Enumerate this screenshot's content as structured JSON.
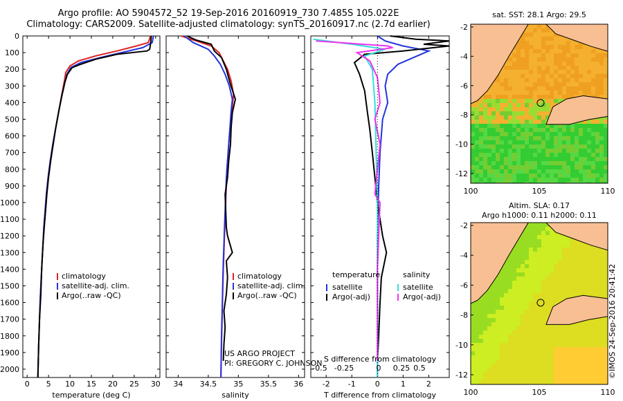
{
  "header": {
    "line1": "Argo profile: AO 5904572_52 19-Sep-2016 20160919_730 7.485S 105.022E",
    "line2": "Climatology: CARS2009. Satellite-adjusted climatology: synTS_20160917.nc (2.7d earlier)"
  },
  "colors": {
    "climatology": "#dd2222",
    "satellite": "#2233dd",
    "argo": "#000000",
    "sat_salinity": "#33dddd",
    "argo_adj_salinity": "#ee33ee",
    "land": "#f8bf93",
    "coast": "#000000"
  },
  "depth_axis": {
    "ticks": [
      0,
      100,
      200,
      300,
      400,
      500,
      600,
      700,
      800,
      900,
      1000,
      1100,
      1200,
      1300,
      1400,
      1500,
      1600,
      1700,
      1800,
      1900,
      2000
    ],
    "ylim": [
      0,
      2050
    ]
  },
  "chart_data": [
    {
      "type": "line",
      "name": "temperature-profile",
      "xlabel": "temperature (deg C)",
      "xlim": [
        -1,
        31
      ],
      "xticks": [
        0,
        5,
        10,
        15,
        20,
        25,
        30
      ],
      "legend": [
        "climatology",
        "satellite-adj. clim.",
        "Argo(..raw -QC)"
      ],
      "series": [
        {
          "name": "climatology",
          "color": "#dd2222",
          "points": [
            [
              28.8,
              0
            ],
            [
              28.3,
              40
            ],
            [
              25.5,
              60
            ],
            [
              21,
              90
            ],
            [
              16,
              120
            ],
            [
              12,
              150
            ],
            [
              10,
              180
            ],
            [
              9,
              220
            ],
            [
              8.7,
              270
            ],
            [
              8.1,
              350
            ],
            [
              7.4,
              450
            ],
            [
              6.7,
              550
            ],
            [
              6,
              650
            ],
            [
              5.4,
              750
            ],
            [
              4.9,
              850
            ],
            [
              4.5,
              950
            ],
            [
              4.2,
              1050
            ],
            [
              3.9,
              1150
            ],
            [
              3.7,
              1250
            ],
            [
              3.4,
              1400
            ],
            [
              3.1,
              1550
            ],
            [
              2.9,
              1700
            ],
            [
              2.7,
              1850
            ],
            [
              2.5,
              2050
            ]
          ]
        },
        {
          "name": "satellite-adj. clim.",
          "color": "#2233dd",
          "points": [
            [
              29.5,
              0
            ],
            [
              29.2,
              40
            ],
            [
              27,
              70
            ],
            [
              22,
              100
            ],
            [
              17,
              130
            ],
            [
              12.5,
              160
            ],
            [
              10.2,
              190
            ],
            [
              9.3,
              230
            ],
            [
              8.8,
              280
            ],
            [
              8.1,
              360
            ],
            [
              7.4,
              450
            ],
            [
              6.7,
              550
            ],
            [
              6,
              650
            ],
            [
              5.4,
              750
            ],
            [
              4.9,
              850
            ],
            [
              4.5,
              950
            ],
            [
              4.2,
              1050
            ],
            [
              3.9,
              1150
            ],
            [
              3.7,
              1250
            ],
            [
              3.4,
              1400
            ],
            [
              3.1,
              1550
            ],
            [
              2.9,
              1700
            ],
            [
              2.7,
              1850
            ],
            [
              2.5,
              2050
            ]
          ]
        },
        {
          "name": "Argo(..raw -QC)",
          "color": "#000000",
          "points": [
            [
              29,
              0
            ],
            [
              28.8,
              50
            ],
            [
              28.6,
              80
            ],
            [
              28,
              90
            ],
            [
              21,
              110
            ],
            [
              16,
              140
            ],
            [
              12.5,
              170
            ],
            [
              10.5,
              190
            ],
            [
              9.4,
              230
            ],
            [
              8.8,
              280
            ],
            [
              8.1,
              360
            ],
            [
              7.4,
              450
            ],
            [
              6.7,
              550
            ],
            [
              6.1,
              650
            ],
            [
              5.5,
              750
            ],
            [
              5,
              850
            ],
            [
              4.6,
              950
            ],
            [
              4.3,
              1050
            ],
            [
              4,
              1150
            ],
            [
              3.7,
              1250
            ],
            [
              3.4,
              1400
            ],
            [
              3.2,
              1550
            ],
            [
              2.9,
              1700
            ],
            [
              2.7,
              1850
            ],
            [
              2.5,
              2050
            ]
          ]
        }
      ]
    },
    {
      "type": "line",
      "name": "salinity-profile",
      "xlabel": "salinity",
      "xlim": [
        33.8,
        36.1
      ],
      "xticks": [
        34,
        34.5,
        35,
        35.5,
        36
      ],
      "legend": [
        "climatology",
        "satellite-adj. clim.",
        "Argo(..raw -QC)"
      ],
      "series": [
        {
          "name": "climatology",
          "color": "#dd2222",
          "points": [
            [
              34.05,
              0
            ],
            [
              34.3,
              30
            ],
            [
              34.55,
              60
            ],
            [
              34.68,
              100
            ],
            [
              34.75,
              150
            ],
            [
              34.82,
              200
            ],
            [
              34.88,
              270
            ],
            [
              34.92,
              350
            ],
            [
              34.9,
              420
            ],
            [
              34.88,
              500
            ],
            [
              34.85,
              600
            ],
            [
              34.83,
              700
            ],
            [
              34.81,
              800
            ],
            [
              34.8,
              900
            ],
            [
              34.79,
              1000
            ],
            [
              34.78,
              1100
            ],
            [
              34.77,
              1200
            ],
            [
              34.76,
              1300
            ],
            [
              34.75,
              1400
            ],
            [
              34.74,
              1550
            ],
            [
              34.73,
              1700
            ],
            [
              34.72,
              1850
            ],
            [
              34.71,
              2050
            ]
          ]
        },
        {
          "name": "satellite-adj. clim.",
          "color": "#2233dd",
          "points": [
            [
              34.1,
              0
            ],
            [
              34.25,
              40
            ],
            [
              34.5,
              80
            ],
            [
              34.6,
              120
            ],
            [
              34.7,
              170
            ],
            [
              34.78,
              230
            ],
            [
              34.85,
              300
            ],
            [
              34.9,
              380
            ],
            [
              34.88,
              450
            ],
            [
              34.86,
              550
            ],
            [
              34.84,
              650
            ],
            [
              34.82,
              750
            ],
            [
              34.8,
              850
            ],
            [
              34.79,
              950
            ],
            [
              34.78,
              1050
            ],
            [
              34.77,
              1150
            ],
            [
              34.76,
              1250
            ],
            [
              34.75,
              1350
            ],
            [
              34.74,
              1500
            ],
            [
              34.73,
              1650
            ],
            [
              34.72,
              1800
            ],
            [
              34.71,
              2050
            ]
          ]
        },
        {
          "name": "Argo(..raw -QC)",
          "color": "#000000",
          "points": [
            [
              34.15,
              0
            ],
            [
              34.3,
              25
            ],
            [
              34.55,
              50
            ],
            [
              34.6,
              90
            ],
            [
              34.72,
              130
            ],
            [
              34.8,
              200
            ],
            [
              34.86,
              280
            ],
            [
              34.95,
              380
            ],
            [
              34.9,
              460
            ],
            [
              34.88,
              550
            ],
            [
              34.87,
              650
            ],
            [
              34.84,
              750
            ],
            [
              34.82,
              850
            ],
            [
              34.78,
              950
            ],
            [
              34.79,
              1050
            ],
            [
              34.8,
              1150
            ],
            [
              34.82,
              1200
            ],
            [
              34.9,
              1300
            ],
            [
              34.8,
              1350
            ],
            [
              34.82,
              1450
            ],
            [
              34.8,
              1550
            ],
            [
              34.76,
              1650
            ],
            [
              34.78,
              1750
            ],
            [
              34.76,
              1850
            ],
            [
              34.75,
              1950
            ]
          ]
        }
      ]
    },
    {
      "type": "line",
      "name": "difference-profile",
      "xlabel": "T difference from climatology",
      "top_label": "S difference from climatology",
      "xlim": [
        -2.6,
        2.8
      ],
      "xticks": [
        -2,
        -1,
        0,
        1,
        2
      ],
      "top_ticks": [
        "-0.5",
        "-0.25",
        "0",
        "0.25",
        "0.5"
      ],
      "legend_temperature": [
        "temperature",
        "satellite",
        "Argo(-adj)"
      ],
      "legend_salinity": [
        "salinity",
        "satellite",
        "Argo(-adj)"
      ],
      "series": [
        {
          "name": "T satellite",
          "color": "#2233dd",
          "points": [
            [
              0,
              0
            ],
            [
              0.3,
              30
            ],
            [
              1,
              60
            ],
            [
              2,
              90
            ],
            [
              1.4,
              130
            ],
            [
              0.8,
              170
            ],
            [
              0.4,
              230
            ],
            [
              0.3,
              300
            ],
            [
              0.4,
              400
            ],
            [
              0.2,
              500
            ],
            [
              0.1,
              700
            ],
            [
              0.05,
              900
            ],
            [
              0,
              1200
            ],
            [
              0,
              1500
            ],
            [
              0,
              2050
            ]
          ]
        },
        {
          "name": "T Argo(-adj)",
          "color": "#000000",
          "points": [
            [
              0.5,
              0
            ],
            [
              1.5,
              20
            ],
            [
              2.8,
              30
            ],
            [
              1.8,
              50
            ],
            [
              2.8,
              60
            ],
            [
              1,
              90
            ],
            [
              -0.5,
              110
            ],
            [
              -0.9,
              160
            ],
            [
              -0.7,
              230
            ],
            [
              -0.5,
              330
            ],
            [
              -0.4,
              450
            ],
            [
              -0.3,
              560
            ],
            [
              -0.2,
              700
            ],
            [
              -0.1,
              850
            ],
            [
              0,
              1000
            ],
            [
              0.2,
              1200
            ],
            [
              0.35,
              1300
            ],
            [
              0.15,
              1450
            ],
            [
              0.1,
              1600
            ],
            [
              0.05,
              1800
            ],
            [
              0,
              1950
            ]
          ]
        },
        {
          "name": "S satellite",
          "color": "#33dddd",
          "points": [
            [
              -2.5,
              20
            ],
            [
              -1,
              50
            ],
            [
              0.3,
              80
            ],
            [
              -0.5,
              120
            ],
            [
              -0.2,
              200
            ],
            [
              -0.1,
              400
            ],
            [
              -0.05,
              700
            ],
            [
              0,
              1000
            ],
            [
              0,
              1500
            ],
            [
              0,
              2050
            ]
          ]
        },
        {
          "name": "S Argo(-adj)",
          "color": "#ee33ee",
          "points": [
            [
              -2.4,
              30
            ],
            [
              0.4,
              60
            ],
            [
              0.6,
              70
            ],
            [
              -0.8,
              100
            ],
            [
              -0.3,
              150
            ],
            [
              0,
              250
            ],
            [
              0.1,
              400
            ],
            [
              -0.1,
              500
            ],
            [
              0.1,
              650
            ],
            [
              0,
              800
            ],
            [
              -0.1,
              950
            ],
            [
              0.1,
              1000
            ],
            [
              0.05,
              1200
            ],
            [
              0,
              1400
            ],
            [
              0,
              1600
            ],
            [
              0,
              1800
            ],
            [
              0,
              1950
            ]
          ]
        }
      ]
    },
    {
      "type": "heatmap",
      "name": "sst-map",
      "title": "sat. SST: 28.1  Argo: 29.5",
      "xticks": [
        "100",
        "105",
        "110"
      ],
      "yticks": [
        "-2",
        "-4",
        "-6",
        "-8",
        "-10",
        "-12"
      ],
      "marker": {
        "lon": 105.022,
        "lat": -7.485
      }
    },
    {
      "type": "heatmap",
      "name": "sla-map",
      "title1": "Altim. SLA: 0.17",
      "title2": "Argo h1000: 0.11 h2000: 0.11",
      "xticks": [
        "100",
        "105",
        "110"
      ],
      "yticks": [
        "-2",
        "-4",
        "-6",
        "-8",
        "-10",
        "-12"
      ],
      "marker": {
        "lon": 105.022,
        "lat": -7.485
      }
    }
  ],
  "credits": {
    "project": "US ARGO PROJECT",
    "pi": "PI: GREGORY C. JOHNSON",
    "stamp": "©IMOS 24-Sep-2016 20:41:42"
  }
}
